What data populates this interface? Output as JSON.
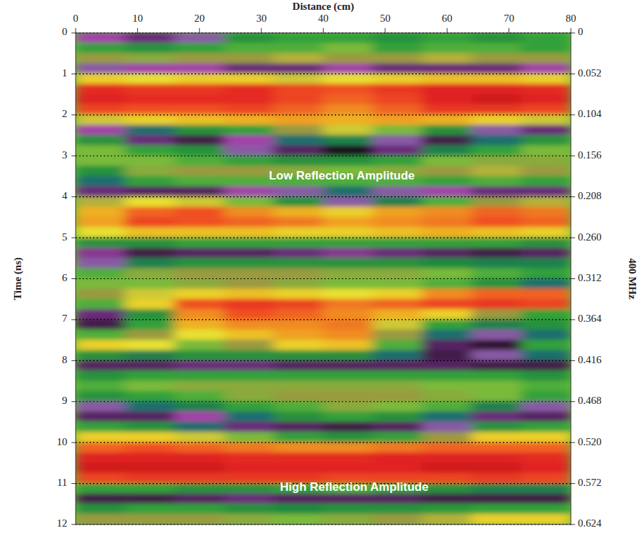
{
  "chart_data": {
    "type": "heatmap",
    "xlabel": "Distance (cm)",
    "ylabel": "Time (ns)",
    "y2label": "400 MHz",
    "xlim": [
      0,
      80
    ],
    "xticks": [
      0,
      10,
      20,
      30,
      40,
      50,
      60,
      70,
      80
    ],
    "ylim": [
      0,
      12
    ],
    "yticks": [
      0,
      1,
      2,
      3,
      4,
      5,
      6,
      7,
      8,
      9,
      10,
      11,
      12
    ],
    "y2lim": [
      0,
      0.624
    ],
    "y2ticks": [
      0,
      0.052,
      0.104,
      0.156,
      0.208,
      {
        "value": 0.26,
        "label": "0.260"
      },
      0.312,
      0.364,
      0.416,
      0.468,
      {
        "value": 0.52,
        "label": "0.520"
      },
      0.572,
      0.624
    ],
    "grid": true,
    "color_range": [
      -1,
      1
    ],
    "x": [
      4,
      12,
      20,
      28,
      36,
      44,
      52,
      60,
      68,
      76
    ],
    "y": [
      0.125,
      0.375,
      0.625,
      0.875,
      1.125,
      1.375,
      1.625,
      1.875,
      2.125,
      2.375,
      2.625,
      2.875,
      3.125,
      3.375,
      3.625,
      3.875,
      4.125,
      4.375,
      4.625,
      4.875,
      5.125,
      5.375,
      5.625,
      5.875,
      6.125,
      6.375,
      6.625,
      6.875,
      7.125,
      7.375,
      7.625,
      7.875,
      8.125,
      8.375,
      8.625,
      8.875,
      9.125,
      9.375,
      9.625,
      9.875,
      10.125,
      10.375,
      10.625,
      10.875,
      11.125,
      11.375,
      11.625,
      11.875
    ],
    "values": [
      [
        -0.7,
        -0.8,
        -0.6,
        -0.3,
        -0.2,
        -0.2,
        -0.3,
        -0.2,
        -0.3,
        -0.2
      ],
      [
        -0.2,
        -0.3,
        -0.2,
        -0.1,
        -0.1,
        0.0,
        -0.2,
        -0.1,
        -0.1,
        -0.2
      ],
      [
        0.1,
        0.05,
        0.1,
        0.1,
        0.15,
        0.1,
        0.1,
        0.15,
        0.1,
        0.1
      ],
      [
        -0.6,
        -0.7,
        -0.7,
        -0.8,
        -0.8,
        -0.7,
        -0.8,
        -0.8,
        -0.8,
        -0.7
      ],
      [
        0.3,
        0.25,
        0.3,
        0.3,
        0.2,
        0.25,
        0.3,
        0.35,
        0.35,
        0.3
      ],
      [
        0.8,
        0.75,
        0.75,
        0.8,
        0.7,
        0.65,
        0.75,
        0.85,
        0.85,
        0.8
      ],
      [
        0.85,
        0.8,
        0.8,
        0.8,
        0.7,
        0.6,
        0.7,
        0.85,
        0.9,
        0.85
      ],
      [
        0.7,
        0.65,
        0.65,
        0.7,
        0.6,
        0.5,
        0.6,
        0.75,
        0.75,
        0.7
      ],
      [
        0.2,
        0.3,
        0.35,
        0.4,
        0.45,
        0.4,
        0.45,
        0.4,
        0.3,
        0.2
      ],
      [
        -0.7,
        -0.5,
        -0.3,
        -0.2,
        0.1,
        0.2,
        0.0,
        -0.3,
        -0.6,
        -0.8
      ],
      [
        -0.3,
        -0.8,
        -0.9,
        -0.7,
        -0.5,
        -0.4,
        -0.6,
        -0.9,
        -0.5,
        -0.3
      ],
      [
        0.0,
        -0.2,
        -0.3,
        -0.6,
        -0.85,
        -1.0,
        -0.8,
        -0.4,
        -0.2,
        0.0
      ],
      [
        0.0,
        0.0,
        -0.1,
        -0.2,
        -0.3,
        -0.3,
        -0.2,
        0.0,
        0.05,
        0.05
      ],
      [
        -0.3,
        0.05,
        0.1,
        0.1,
        0.05,
        0.0,
        0.05,
        0.1,
        0.15,
        0.1
      ],
      [
        -0.5,
        -0.2,
        -0.1,
        -0.1,
        -0.1,
        -0.1,
        -0.1,
        -0.2,
        -0.1,
        -0.2
      ],
      [
        -0.8,
        -0.85,
        -0.85,
        -0.7,
        -0.6,
        -0.5,
        -0.6,
        -0.7,
        -0.8,
        -0.8
      ],
      [
        0.15,
        0.25,
        0.2,
        0.0,
        -0.3,
        -0.6,
        -0.4,
        -0.1,
        0.1,
        0.15
      ],
      [
        0.4,
        0.6,
        0.65,
        0.5,
        0.4,
        0.3,
        0.45,
        0.5,
        0.6,
        0.55
      ],
      [
        0.45,
        0.7,
        0.65,
        0.6,
        0.55,
        0.45,
        0.5,
        0.55,
        0.65,
        0.6
      ],
      [
        0.25,
        0.35,
        0.35,
        0.35,
        0.3,
        0.3,
        0.35,
        0.4,
        0.35,
        0.3
      ],
      [
        -0.3,
        -0.3,
        -0.2,
        -0.2,
        -0.2,
        -0.2,
        -0.2,
        -0.2,
        -0.2,
        -0.3
      ],
      [
        -0.75,
        -0.9,
        -0.85,
        -0.85,
        -0.8,
        -0.75,
        -0.8,
        -0.85,
        -0.9,
        -0.85
      ],
      [
        -0.6,
        -0.4,
        -0.3,
        -0.3,
        -0.3,
        -0.3,
        -0.3,
        -0.35,
        -0.4,
        -0.4
      ],
      [
        -0.1,
        0.05,
        0.1,
        0.1,
        0.1,
        0.05,
        0.05,
        0.0,
        -0.1,
        -0.2
      ],
      [
        0.0,
        0.0,
        0.05,
        0.1,
        0.05,
        0.0,
        0.0,
        -0.1,
        -0.3,
        -0.5
      ],
      [
        0.1,
        0.2,
        0.3,
        0.35,
        0.3,
        0.25,
        0.3,
        0.5,
        0.6,
        0.6
      ],
      [
        -0.1,
        0.3,
        0.65,
        0.75,
        0.7,
        0.55,
        0.6,
        0.7,
        0.75,
        0.7
      ],
      [
        -0.8,
        -0.3,
        0.5,
        0.65,
        0.6,
        0.5,
        0.4,
        0.3,
        0.1,
        -0.2
      ],
      [
        -0.9,
        -0.2,
        0.4,
        0.5,
        0.5,
        0.55,
        0.2,
        -0.2,
        -0.4,
        -0.3
      ],
      [
        -0.1,
        0.1,
        0.25,
        0.35,
        0.45,
        0.5,
        0.1,
        -0.5,
        -0.6,
        -0.5
      ],
      [
        0.3,
        0.25,
        0.0,
        0.1,
        0.3,
        0.35,
        -0.1,
        -0.85,
        -0.95,
        -0.2
      ],
      [
        -0.3,
        -0.4,
        -0.3,
        -0.3,
        -0.3,
        -0.3,
        -0.5,
        -0.9,
        -0.6,
        -0.5
      ],
      [
        -0.85,
        -0.85,
        -0.8,
        -0.8,
        -0.85,
        -0.85,
        -0.85,
        -0.85,
        -0.9,
        -0.9
      ],
      [
        -0.3,
        -0.2,
        -0.2,
        -0.2,
        -0.2,
        -0.2,
        -0.2,
        -0.2,
        -0.2,
        -0.3
      ],
      [
        -0.1,
        0.0,
        0.05,
        0.05,
        0.05,
        0.05,
        0.05,
        0.0,
        0.0,
        -0.1
      ],
      [
        -0.3,
        -0.2,
        -0.1,
        0.05,
        0.1,
        0.1,
        0.1,
        0.05,
        0.0,
        -0.2
      ],
      [
        -0.6,
        -0.5,
        -0.4,
        -0.2,
        -0.1,
        0.05,
        0.0,
        -0.1,
        -0.4,
        -0.6
      ],
      [
        -0.85,
        -0.85,
        -0.7,
        -0.5,
        -0.3,
        -0.2,
        -0.3,
        -0.5,
        -0.8,
        -0.85
      ],
      [
        -0.2,
        -0.3,
        -0.5,
        -0.8,
        -0.85,
        -0.9,
        -0.85,
        -0.6,
        -0.3,
        -0.2
      ],
      [
        0.3,
        0.3,
        0.2,
        0.0,
        -0.2,
        -0.3,
        -0.2,
        0.1,
        0.3,
        0.3
      ],
      [
        0.6,
        0.65,
        0.6,
        0.55,
        0.5,
        0.5,
        0.55,
        0.6,
        0.6,
        0.6
      ],
      [
        0.85,
        0.85,
        0.85,
        0.8,
        0.8,
        0.8,
        0.85,
        0.85,
        0.85,
        0.8
      ],
      [
        0.9,
        0.9,
        0.9,
        0.85,
        0.85,
        0.85,
        0.85,
        0.9,
        0.9,
        0.85
      ],
      [
        0.7,
        0.75,
        0.75,
        0.75,
        0.75,
        0.7,
        0.7,
        0.7,
        0.75,
        0.7
      ],
      [
        -0.2,
        -0.2,
        -0.3,
        -0.3,
        -0.2,
        -0.1,
        -0.2,
        -0.3,
        -0.4,
        -0.4
      ],
      [
        -0.9,
        -0.9,
        -0.85,
        -0.8,
        -0.85,
        -0.85,
        -0.85,
        -0.9,
        -0.9,
        -0.9
      ],
      [
        -0.3,
        -0.2,
        -0.2,
        -0.3,
        -0.35,
        -0.3,
        -0.3,
        -0.25,
        -0.2,
        -0.2
      ],
      [
        0.1,
        0.1,
        0.1,
        0.05,
        0.0,
        0.05,
        0.1,
        0.15,
        0.3,
        0.3
      ]
    ],
    "annotations": [
      {
        "text": "Low Reflection Amplitude",
        "x": 43,
        "y": 3.5
      },
      {
        "text": "High Reflection Amplitude",
        "x": 45,
        "y": 11.1
      }
    ]
  }
}
